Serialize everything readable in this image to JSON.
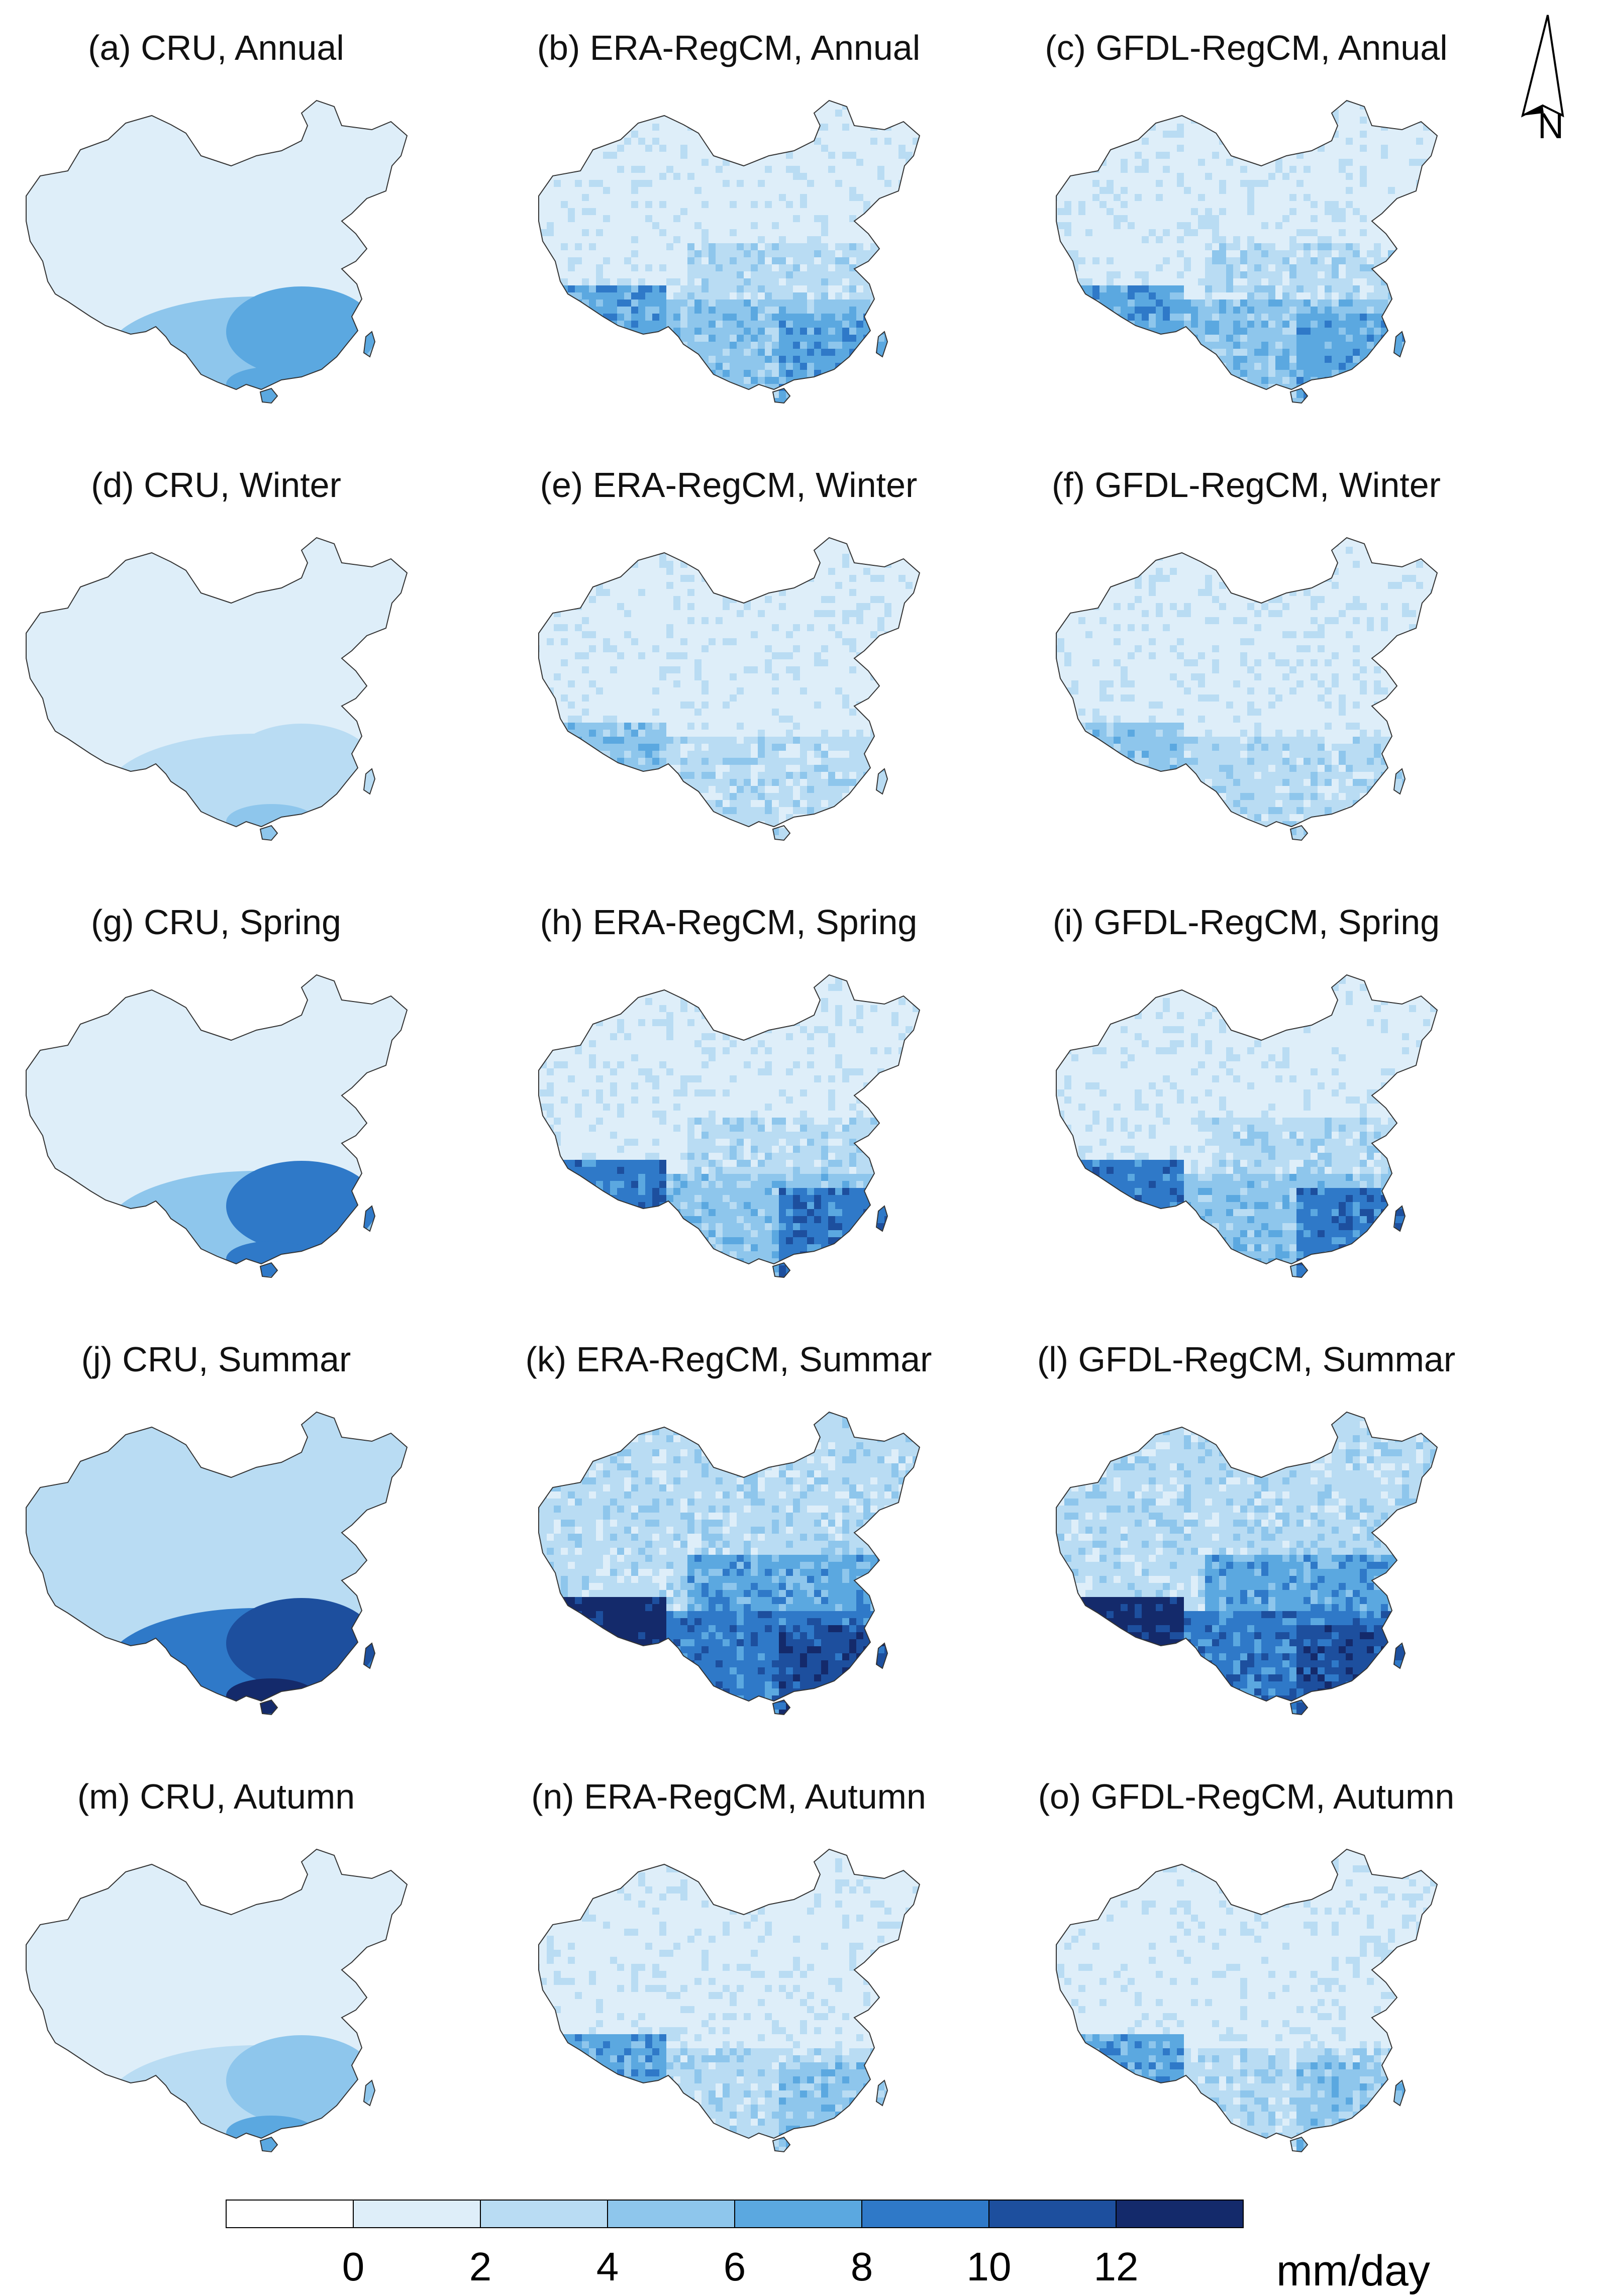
{
  "north_arrow": {
    "label": "N"
  },
  "panels": [
    {
      "title": "(a) CRU, Annual",
      "source": "CRU",
      "season": "Annual",
      "pattern": "cru"
    },
    {
      "title": "(b) ERA-RegCM, Annual",
      "source": "ERA-RegCM",
      "season": "Annual",
      "pattern": "model"
    },
    {
      "title": "(c) GFDL-RegCM, Annual",
      "source": "GFDL-RegCM",
      "season": "Annual",
      "pattern": "model"
    },
    {
      "title": "(d) CRU, Winter",
      "source": "CRU",
      "season": "Winter",
      "pattern": "cru"
    },
    {
      "title": "(e) ERA-RegCM, Winter",
      "source": "ERA-RegCM",
      "season": "Winter",
      "pattern": "model"
    },
    {
      "title": "(f) GFDL-RegCM, Winter",
      "source": "GFDL-RegCM",
      "season": "Winter",
      "pattern": "model"
    },
    {
      "title": "(g) CRU, Spring",
      "source": "CRU",
      "season": "Spring",
      "pattern": "cru"
    },
    {
      "title": "(h) ERA-RegCM, Spring",
      "source": "ERA-RegCM",
      "season": "Spring",
      "pattern": "model"
    },
    {
      "title": "(i) GFDL-RegCM, Spring",
      "source": "GFDL-RegCM",
      "season": "Spring",
      "pattern": "model"
    },
    {
      "title": "(j) CRU, Summar",
      "source": "CRU",
      "season": "Summar",
      "pattern": "cru"
    },
    {
      "title": "(k) ERA-RegCM, Summar",
      "source": "ERA-RegCM",
      "season": "Summar",
      "pattern": "model"
    },
    {
      "title": "(l) GFDL-RegCM, Summar",
      "source": "GFDL-RegCM",
      "season": "Summar",
      "pattern": "model"
    },
    {
      "title": "(m) CRU, Autumn",
      "source": "CRU",
      "season": "Autumn",
      "pattern": "cru"
    },
    {
      "title": "(n) ERA-RegCM, Autumn",
      "source": "ERA-RegCM",
      "season": "Autumn",
      "pattern": "model"
    },
    {
      "title": "(o) GFDL-RegCM, Autumn",
      "source": "GFDL-RegCM",
      "season": "Autumn",
      "pattern": "model"
    }
  ],
  "seasons": {
    "Annual": {
      "north": 0,
      "south": 2,
      "southeast": 3,
      "southwest_edge": 3
    },
    "Winter": {
      "north": 0,
      "south": 1,
      "southeast": 1,
      "southwest_edge": 2
    },
    "Spring": {
      "north": 0,
      "south": 2,
      "southeast": 4,
      "southwest_edge": 4
    },
    "Summar": {
      "north": 1,
      "south": 4,
      "southeast": 5,
      "southwest_edge": 6
    },
    "Autumn": {
      "north": 0,
      "south": 1,
      "southeast": 2,
      "southwest_edge": 3
    }
  },
  "colorbar": {
    "units": "mm/day",
    "ticks": [
      "0",
      "2",
      "4",
      "6",
      "8",
      "10",
      "12"
    ],
    "colors": [
      "#ffffff",
      "#deeef9",
      "#b9dcf3",
      "#8ec6ec",
      "#5ba8e0",
      "#2f79c8",
      "#1d4f9e",
      "#142a6b"
    ]
  }
}
